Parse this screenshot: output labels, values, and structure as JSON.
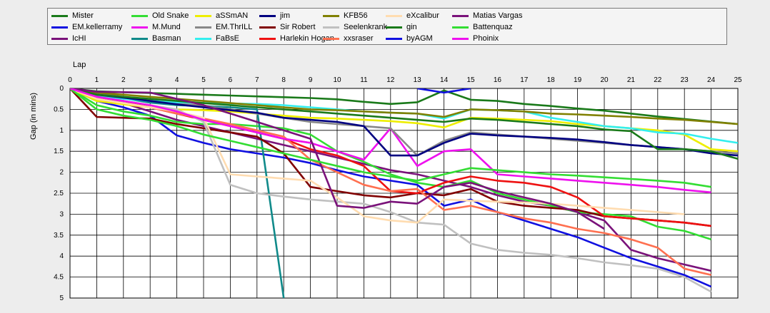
{
  "chart_data": {
    "type": "line",
    "xlabel": "Lap",
    "ylabel": "Gap (in mins)",
    "xlim": [
      0,
      25
    ],
    "ylim": [
      0,
      5
    ],
    "x_ticks": [
      "0",
      "1",
      "2",
      "3",
      "4",
      "5",
      "6",
      "7",
      "8",
      "9",
      "10",
      "11",
      "12",
      "13",
      "14",
      "15",
      "16",
      "17",
      "18",
      "19",
      "20",
      "21",
      "22",
      "23",
      "24",
      "25"
    ],
    "y_ticks": [
      "0",
      "0.5",
      "1",
      "1.5",
      "2",
      "2.5",
      "3",
      "3.5",
      "4",
      "4.5",
      "5"
    ],
    "grid": true,
    "legend_position": "top",
    "series": [
      {
        "name": "Mister",
        "color": "#1a7a1a",
        "x": [
          0,
          1,
          2,
          3,
          4,
          5,
          6,
          7,
          8,
          9,
          10,
          11,
          12,
          13,
          14,
          15,
          16,
          17,
          18,
          19,
          20,
          21,
          22,
          23,
          24,
          25
        ],
        "y": [
          0,
          0.07,
          0.09,
          0.11,
          0.13,
          0.15,
          0.17,
          0.19,
          0.21,
          0.23,
          0.26,
          0.32,
          0.37,
          0.33,
          0.05,
          0.27,
          0.3,
          0.37,
          0.42,
          0.48,
          0.53,
          0.6,
          0.67,
          0.73,
          0.79,
          0.85
        ]
      },
      {
        "name": "EM.kellerramy",
        "color": "#1010e0",
        "x": [
          0,
          1,
          2,
          3,
          4,
          5,
          6,
          7,
          8,
          9,
          10,
          11,
          12,
          13,
          14,
          15,
          16,
          17,
          18,
          19,
          20,
          21,
          22,
          23,
          24
        ],
        "y": [
          0,
          0.3,
          0.45,
          0.65,
          1.12,
          1.3,
          1.45,
          1.55,
          1.65,
          1.78,
          1.95,
          2.1,
          2.2,
          2.3,
          2.8,
          2.65,
          2.95,
          3.15,
          3.35,
          3.55,
          3.8,
          4.05,
          4.25,
          4.45,
          4.73
        ]
      },
      {
        "name": "IcHI",
        "color": "#7a127a",
        "x": [
          0,
          1,
          2,
          3,
          4,
          5,
          6,
          7,
          8,
          9,
          10,
          11,
          12,
          13,
          14,
          15,
          16,
          17,
          18,
          19,
          20,
          21,
          22,
          23,
          24
        ],
        "y": [
          0,
          0.2,
          0.35,
          0.55,
          0.75,
          0.9,
          1.05,
          1.2,
          1.35,
          1.5,
          1.65,
          1.8,
          1.95,
          2.05,
          2.2,
          2.35,
          2.55,
          2.7,
          2.8,
          2.95,
          3.15,
          3.85,
          4.05,
          4.2,
          4.35
        ]
      },
      {
        "name": "Old Snake",
        "color": "#33dd33",
        "x": [
          0,
          1,
          2,
          3,
          4,
          5,
          6,
          7,
          8,
          9,
          10,
          11,
          12,
          13,
          14,
          15,
          16,
          17,
          18,
          19,
          20,
          21,
          22,
          23,
          24
        ],
        "y": [
          0,
          0.4,
          0.55,
          0.65,
          0.8,
          0.85,
          0.85,
          0.9,
          0.95,
          1.1,
          1.5,
          1.75,
          2.05,
          2.25,
          2.35,
          2.2,
          2.5,
          2.65,
          2.8,
          2.95,
          3.0,
          3.05,
          3.3,
          3.4,
          3.6
        ]
      },
      {
        "name": "M.Mund",
        "color": "#ee11ee",
        "x": [
          0,
          1,
          2,
          3,
          4,
          5,
          6,
          7,
          8,
          9,
          10,
          11,
          12,
          13,
          14,
          15,
          16,
          17,
          18,
          19,
          20,
          21,
          22,
          23,
          24
        ],
        "y": [
          0,
          0.15,
          0.3,
          0.45,
          0.6,
          0.75,
          0.9,
          1.05,
          1.2,
          1.3,
          1.5,
          1.7,
          0.95,
          1.85,
          1.5,
          1.45,
          2.05,
          2.1,
          2.15,
          2.2,
          2.25,
          2.3,
          2.35,
          2.42,
          2.48
        ]
      },
      {
        "name": "Basman",
        "color": "#108a8a",
        "x": [
          0,
          1,
          2,
          3,
          4,
          5,
          6,
          7,
          8
        ],
        "y": [
          0,
          0.14,
          0.24,
          0.34,
          0.4,
          0.42,
          0.45,
          0.5,
          5.0
        ]
      },
      {
        "name": "aSSmAN",
        "color": "#eeee00",
        "x": [
          0,
          1,
          2,
          3,
          4,
          5,
          6,
          7,
          8,
          9,
          10,
          11,
          12,
          13,
          14,
          15,
          16,
          17,
          18,
          19,
          20,
          21,
          22,
          23,
          24,
          25
        ],
        "y": [
          0,
          0.3,
          0.38,
          0.45,
          0.5,
          0.52,
          0.55,
          0.6,
          0.65,
          0.7,
          0.72,
          0.75,
          0.78,
          0.83,
          0.93,
          0.7,
          0.72,
          0.75,
          0.78,
          0.85,
          0.9,
          0.95,
          1.0,
          1.1,
          1.45,
          1.5
        ]
      },
      {
        "name": "EM.ThrILL",
        "color": "#888888",
        "x": [
          0,
          1,
          2,
          3,
          4,
          5,
          6,
          7,
          8,
          9,
          10,
          11,
          12,
          13,
          14,
          15,
          16,
          17,
          18,
          19,
          20,
          21,
          22,
          23,
          24,
          25
        ],
        "y": [
          0,
          0.12,
          0.2,
          0.28,
          0.35,
          0.42,
          0.5,
          0.6,
          0.7,
          0.8,
          0.85,
          0.9,
          0.95,
          1.6,
          1.25,
          1.05,
          1.1,
          1.15,
          1.2,
          1.25,
          1.3,
          1.35,
          1.4,
          1.45,
          1.5,
          1.55
        ]
      },
      {
        "name": "FaBsE",
        "color": "#33eeee",
        "x": [
          0,
          1,
          2,
          3,
          4,
          5,
          6,
          7,
          8,
          9,
          10,
          11,
          12,
          13,
          14,
          15,
          16,
          17,
          18,
          19,
          20,
          21,
          22,
          23,
          24,
          25
        ],
        "y": [
          0,
          0.18,
          0.25,
          0.3,
          0.33,
          0.35,
          0.36,
          0.37,
          0.4,
          0.45,
          0.5,
          0.55,
          0.58,
          0.6,
          0.72,
          0.5,
          0.52,
          0.55,
          0.7,
          0.8,
          0.9,
          0.95,
          1.05,
          1.08,
          1.2,
          1.3
        ]
      },
      {
        "name": "jim",
        "color": "#000080",
        "x": [
          0,
          1,
          2,
          3,
          4,
          5,
          6,
          7,
          8,
          9,
          10,
          11,
          12,
          13,
          14,
          15,
          16,
          17,
          18,
          19,
          20,
          21,
          22,
          23,
          24,
          25
        ],
        "y": [
          0,
          0.15,
          0.22,
          0.3,
          0.38,
          0.45,
          0.52,
          0.58,
          0.7,
          0.75,
          0.8,
          0.9,
          1.6,
          1.6,
          1.3,
          1.08,
          1.12,
          1.15,
          1.18,
          1.22,
          1.28,
          1.35,
          1.4,
          1.45,
          1.55,
          1.6
        ]
      },
      {
        "name": "Sir Robert",
        "color": "#800000",
        "x": [
          0,
          1,
          2,
          3,
          4,
          5,
          6,
          7,
          8,
          9,
          10,
          11,
          12,
          13,
          14,
          15,
          16,
          17,
          18,
          19,
          20,
          21,
          22,
          23,
          24
        ],
        "y": [
          0,
          0.68,
          0.7,
          0.72,
          0.85,
          0.95,
          1.05,
          1.15,
          1.55,
          2.35,
          2.45,
          2.55,
          2.6,
          2.5,
          2.55,
          2.4,
          2.7,
          2.8,
          2.85,
          2.9,
          3.05,
          3.1,
          3.15,
          3.2,
          3.28
        ]
      },
      {
        "name": "Harlekin Hogan",
        "color": "#ee1111",
        "x": [
          0,
          1,
          2,
          3,
          4,
          5,
          6,
          7,
          8,
          9,
          10,
          11,
          12,
          13,
          14,
          15,
          16,
          17,
          18,
          19,
          20,
          21,
          22,
          23,
          24
        ],
        "y": [
          0,
          0.2,
          0.3,
          0.45,
          0.6,
          0.75,
          0.9,
          1.05,
          1.2,
          1.45,
          1.6,
          1.85,
          2.45,
          2.5,
          2.25,
          2.1,
          2.2,
          2.25,
          2.35,
          2.6,
          3.05,
          3.1,
          3.15,
          3.2,
          3.28
        ]
      },
      {
        "name": "KFB56",
        "color": "#808000",
        "x": [
          0,
          1,
          2,
          3,
          4,
          5,
          6,
          7,
          8,
          9,
          10,
          11,
          12,
          13,
          14,
          15,
          16,
          17,
          18,
          19,
          20,
          21,
          22,
          23,
          24,
          25
        ],
        "y": [
          0,
          0.1,
          0.15,
          0.2,
          0.25,
          0.3,
          0.35,
          0.4,
          0.45,
          0.5,
          0.52,
          0.55,
          0.58,
          0.6,
          0.68,
          0.5,
          0.52,
          0.55,
          0.6,
          0.62,
          0.65,
          0.68,
          0.72,
          0.75,
          0.8,
          0.85
        ]
      },
      {
        "name": "Seelenkrank",
        "color": "#c0c0c0",
        "x": [
          0,
          1,
          2,
          3,
          4,
          5,
          6,
          7,
          8,
          9,
          10,
          11,
          12,
          13,
          14,
          15,
          16,
          17,
          18,
          19,
          20,
          21,
          22,
          23,
          24
        ],
        "y": [
          0,
          0.2,
          0.3,
          0.4,
          0.5,
          0.8,
          2.3,
          2.5,
          2.58,
          2.65,
          2.7,
          2.75,
          2.95,
          3.2,
          3.25,
          3.7,
          3.85,
          3.92,
          3.97,
          4.05,
          4.15,
          4.22,
          4.3,
          4.5,
          4.85
        ]
      },
      {
        "name": "xxsraser",
        "color": "#ff7050",
        "x": [
          0,
          1,
          2,
          3,
          4,
          5,
          6,
          7,
          8,
          9,
          10,
          11,
          12,
          13,
          14,
          15,
          16,
          17,
          18,
          19,
          20,
          21,
          22,
          23,
          24
        ],
        "y": [
          0,
          0.25,
          0.35,
          0.45,
          0.6,
          0.72,
          0.85,
          1.0,
          1.15,
          1.7,
          2.0,
          2.3,
          2.45,
          2.4,
          2.9,
          2.8,
          2.95,
          3.1,
          3.2,
          3.35,
          3.45,
          3.6,
          3.8,
          4.3,
          4.45
        ]
      },
      {
        "name": "eXcalibur",
        "color": "#ffdcb0",
        "x": [
          0,
          1,
          2,
          3,
          4,
          5,
          6,
          7,
          8,
          9,
          10,
          11,
          12,
          13,
          14,
          15,
          16,
          17,
          18,
          19,
          20,
          21,
          22,
          23
        ],
        "y": [
          0,
          0.25,
          0.35,
          0.45,
          0.55,
          0.7,
          2.05,
          2.1,
          2.15,
          2.2,
          2.6,
          3.05,
          3.15,
          3.2,
          2.65,
          2.68,
          2.7,
          2.72,
          2.75,
          2.8,
          2.85,
          2.9,
          2.95,
          3.0
        ]
      },
      {
        "name": "gin",
        "color": "#1a7a1a",
        "x": [
          0,
          1,
          2,
          3,
          4,
          5,
          6,
          7,
          8,
          9,
          10,
          11,
          12,
          13,
          14,
          15,
          16,
          17,
          18,
          19,
          20,
          21,
          22,
          23,
          24,
          25
        ],
        "y": [
          0,
          0.15,
          0.2,
          0.25,
          0.3,
          0.35,
          0.4,
          0.45,
          0.5,
          0.55,
          0.6,
          0.65,
          0.7,
          0.75,
          0.8,
          0.72,
          0.75,
          0.8,
          0.85,
          0.9,
          0.98,
          1.02,
          1.45,
          1.45,
          1.5,
          1.68
        ]
      },
      {
        "name": "byAGM",
        "color": "#1010e0",
        "x": [
          13,
          14,
          15
        ],
        "y": [
          0,
          0.1,
          0
        ]
      },
      {
        "name": "Matias Vargas",
        "color": "#7a127a",
        "x": [
          0,
          1,
          2,
          3,
          4,
          5,
          6,
          7,
          8,
          9,
          10,
          11,
          12,
          13,
          14,
          15,
          16,
          17,
          18,
          19,
          20
        ],
        "y": [
          0,
          0.08,
          0.09,
          0.1,
          0.25,
          0.4,
          0.6,
          0.8,
          1.0,
          1.2,
          2.8,
          2.85,
          2.7,
          2.75,
          2.35,
          2.25,
          2.45,
          2.6,
          2.75,
          2.95,
          3.35
        ]
      },
      {
        "name": "Battenquaz",
        "color": "#33dd33",
        "x": [
          0,
          1,
          2,
          3,
          4,
          5,
          6,
          7,
          8,
          9,
          10,
          11,
          12,
          13,
          14,
          15,
          16,
          17,
          18,
          19,
          20,
          21,
          22,
          23,
          24
        ],
        "y": [
          0,
          0.5,
          0.65,
          0.75,
          0.9,
          1.1,
          1.25,
          1.4,
          1.55,
          1.7,
          1.85,
          2.0,
          2.1,
          2.2,
          2.05,
          1.9,
          1.95,
          2.0,
          2.05,
          2.08,
          2.12,
          2.16,
          2.2,
          2.25,
          2.35
        ]
      },
      {
        "name": "Phoinix",
        "color": "#ee11ee",
        "x": [
          0,
          1,
          2,
          3,
          4,
          5,
          6,
          7,
          8,
          9
        ],
        "y": [
          0,
          0.2,
          0.3,
          0.4,
          0.55,
          0.75,
          0.9,
          1.05,
          1.2,
          1.3
        ]
      }
    ]
  }
}
